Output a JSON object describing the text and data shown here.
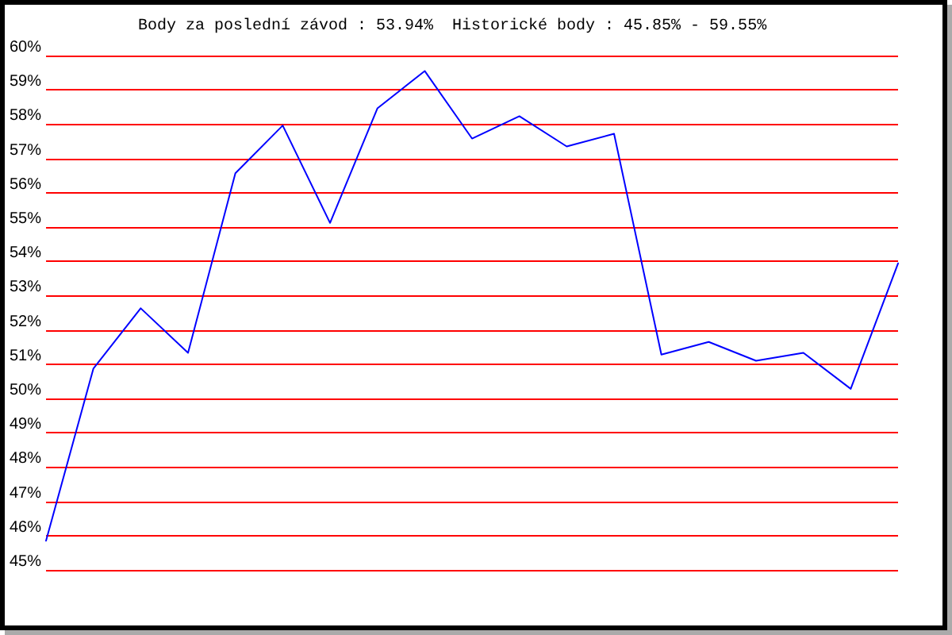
{
  "chart_data": {
    "type": "line",
    "title": "Body za poslední závod : 53.94%  Historické body : 45.85% - 59.55%",
    "categories": [
      null,
      null,
      null,
      null,
      null,
      null,
      null,
      null,
      null,
      null,
      null,
      null,
      null,
      null,
      null,
      null,
      null,
      null,
      null
    ],
    "series": [
      {
        "color": "#0000ff",
        "values": [
          45.85,
          50.87,
          52.63,
          51.33,
          56.57,
          57.96,
          55.12,
          58.46,
          59.55,
          57.58,
          58.23,
          57.35,
          57.72,
          51.28,
          51.65,
          51.1,
          51.33,
          50.28,
          53.94
        ]
      }
    ],
    "ylim": [
      45,
      60
    ],
    "yticks": [
      {
        "value": 45,
        "label": "45%"
      },
      {
        "value": 46,
        "label": "46%"
      },
      {
        "value": 47,
        "label": "47%"
      },
      {
        "value": 48,
        "label": "48%"
      },
      {
        "value": 49,
        "label": "49%"
      },
      {
        "value": 50,
        "label": "50%"
      },
      {
        "value": 51,
        "label": "51%"
      },
      {
        "value": 52,
        "label": "52%"
      },
      {
        "value": 53,
        "label": "53%"
      },
      {
        "value": 54,
        "label": "54%"
      },
      {
        "value": 55,
        "label": "55%"
      },
      {
        "value": 56,
        "label": "56%"
      },
      {
        "value": 57,
        "label": "57%"
      },
      {
        "value": 58,
        "label": "58%"
      },
      {
        "value": 59,
        "label": "59%"
      },
      {
        "value": 60,
        "label": "60%"
      }
    ],
    "grid": "y",
    "marker": "none",
    "line_style": "solid",
    "tick_labels": "y"
  }
}
